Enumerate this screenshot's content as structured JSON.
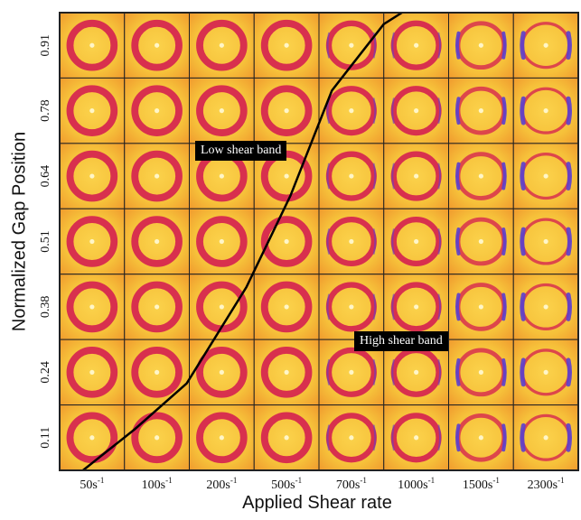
{
  "axes": {
    "x_title": "Applied Shear rate",
    "y_title": "Normalized Gap Position",
    "x_ticks": [
      {
        "base": "50s",
        "exp": "-1"
      },
      {
        "base": "100s",
        "exp": "-1"
      },
      {
        "base": "200s",
        "exp": "-1"
      },
      {
        "base": "500s",
        "exp": "-1"
      },
      {
        "base": "700s",
        "exp": "-1"
      },
      {
        "base": "1000s",
        "exp": "-1"
      },
      {
        "base": "1500s",
        "exp": "-1"
      },
      {
        "base": "2300s",
        "exp": "-1"
      }
    ],
    "y_ticks_top_to_bottom": [
      "0.91",
      "0.78",
      "0.64",
      "0.51",
      "0.38",
      "0.24",
      "0.11"
    ]
  },
  "annotations": {
    "low_band": "Low shear band",
    "high_band": "High shear band"
  },
  "grid": {
    "columns": 8,
    "rows": 7,
    "aniso_level_by_column": [
      0,
      0,
      0,
      0,
      1,
      1,
      2,
      3
    ],
    "colors": {
      "background": "#f6c13a",
      "background_edge": "#f3a22f",
      "ring": "#d8304e",
      "center": "#fff6c8",
      "arc": "#5a3fd0",
      "border": "#222222",
      "curve": "#000000"
    }
  },
  "band_boundary_curve": [
    [
      0.045,
      0.0
    ],
    [
      0.145,
      0.09
    ],
    [
      0.245,
      0.19
    ],
    [
      0.36,
      0.4
    ],
    [
      0.445,
      0.6
    ],
    [
      0.525,
      0.83
    ],
    [
      0.625,
      0.975
    ],
    [
      0.66,
      1.0
    ]
  ]
}
